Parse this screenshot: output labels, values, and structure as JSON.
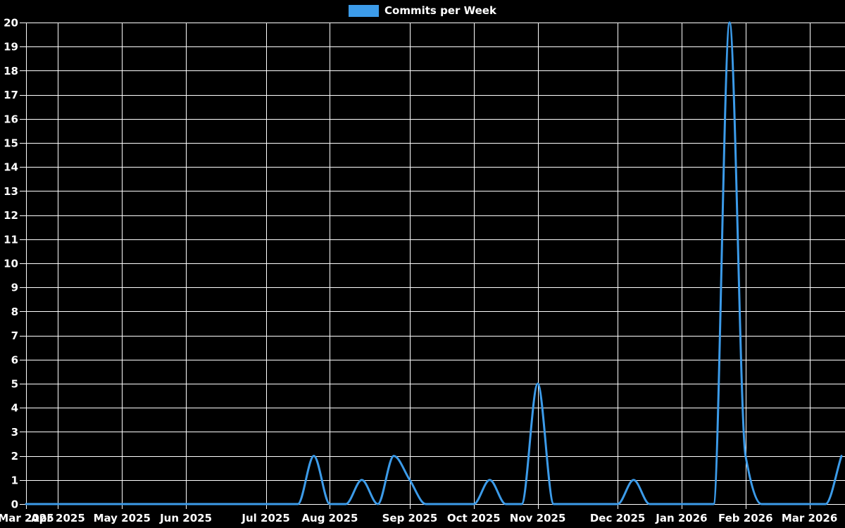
{
  "legend": {
    "label": "Commits per Week"
  },
  "chart_data": {
    "type": "line",
    "title": "Commits per Week",
    "x_unit": "week",
    "point_count": 52,
    "series": [
      {
        "name": "Commits per Week",
        "values": [
          0,
          0,
          0,
          0,
          0,
          0,
          0,
          0,
          0,
          0,
          0,
          0,
          0,
          0,
          0,
          0,
          0,
          0,
          2,
          0,
          0,
          1,
          0,
          2,
          1,
          0,
          0,
          0,
          0,
          1,
          0,
          0,
          5,
          0,
          0,
          0,
          0,
          0,
          1,
          0,
          0,
          0,
          0,
          0,
          20,
          2,
          0,
          0,
          0,
          0,
          0,
          2
        ]
      }
    ],
    "x_ticks": [
      {
        "week": 0,
        "label": "Mar 2025"
      },
      {
        "week": 2,
        "label": "Apr 2025"
      },
      {
        "week": 6,
        "label": "May 2025"
      },
      {
        "week": 10,
        "label": "Jun 2025"
      },
      {
        "week": 15,
        "label": "Jul 2025"
      },
      {
        "week": 19,
        "label": "Aug 2025"
      },
      {
        "week": 24,
        "label": "Sep 2025"
      },
      {
        "week": 28,
        "label": "Oct 2025"
      },
      {
        "week": 32,
        "label": "Nov 2025"
      },
      {
        "week": 37,
        "label": "Dec 2025"
      },
      {
        "week": 41,
        "label": "Jan 2026"
      },
      {
        "week": 45,
        "label": "Feb 2026"
      },
      {
        "week": 49,
        "label": "Mar 2026"
      }
    ],
    "ylim": [
      0,
      20
    ],
    "y_tick_step": 1,
    "grid": true,
    "legend_position": "top-center",
    "colors": {
      "line": "#3c9be9",
      "background": "#000000",
      "grid": "#ffffff",
      "text": "#ffffff"
    }
  }
}
